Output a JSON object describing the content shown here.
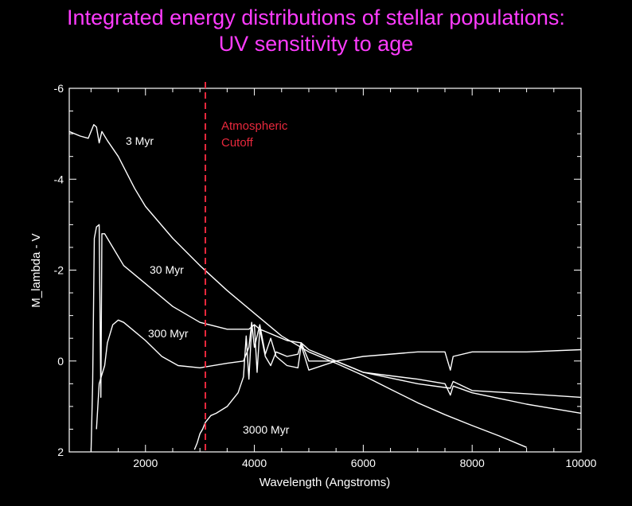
{
  "title": {
    "line1": "Integrated energy distributions of stellar populations:",
    "line2": "UV sensitivity to age"
  },
  "colors": {
    "background": "#000000",
    "title": "#ff3cff",
    "axes": "#ffffff",
    "curves": "#ffffff",
    "cutoff": "#e8283c"
  },
  "chart_data": {
    "type": "line",
    "xlabel": "Wavelength (Angstroms)",
    "ylabel": "M_lambda - V",
    "xlim": [
      600,
      10000
    ],
    "ylim": [
      2,
      -6
    ],
    "y_inverted": true,
    "xticks": [
      2000,
      4000,
      6000,
      8000,
      10000
    ],
    "yticks": [
      -6,
      -4,
      -2,
      0,
      2
    ],
    "grid": false,
    "cutoff": {
      "x": 3100,
      "label_line1": "Atmospheric",
      "label_line2": "Cutoff"
    },
    "series": [
      {
        "name": "3 Myr",
        "x": [
          600,
          800,
          950,
          1050,
          1100,
          1150,
          1200,
          1300,
          1500,
          1800,
          2000,
          2500,
          3000,
          3500,
          4000,
          4500,
          5000,
          5500,
          6000,
          6500,
          7000,
          7500,
          8000,
          8500,
          9000
        ],
        "y": [
          -5.05,
          -4.95,
          -4.9,
          -5.2,
          -5.15,
          -4.8,
          -5.05,
          -4.85,
          -4.5,
          -3.8,
          -3.4,
          -2.7,
          -2.1,
          -1.55,
          -1.05,
          -0.55,
          -0.2,
          0.05,
          0.32,
          0.62,
          0.92,
          1.18,
          1.42,
          1.65,
          1.9
        ]
      },
      {
        "name": "30 Myr",
        "x": [
          1000,
          1030,
          1060,
          1100,
          1150,
          1180,
          1200,
          1250,
          1300,
          1400,
          1600,
          2000,
          2500,
          3000,
          3500,
          3900,
          4000,
          4100,
          4200,
          4400,
          4600,
          4860,
          5000,
          5500,
          6000,
          7000,
          7600,
          7650,
          8000,
          9000,
          10000
        ],
        "y": [
          2.0,
          0.5,
          -2.7,
          -2.95,
          -3.0,
          0.8,
          -2.8,
          -2.8,
          -2.7,
          -2.5,
          -2.1,
          -1.7,
          -1.2,
          -0.85,
          -0.7,
          -0.7,
          -0.8,
          -0.7,
          -0.65,
          -0.55,
          -0.45,
          -0.4,
          -0.25,
          0.0,
          0.25,
          0.5,
          0.6,
          0.45,
          0.65,
          0.72,
          0.8
        ]
      },
      {
        "name": "300 Myr",
        "x": [
          1100,
          1150,
          1200,
          1250,
          1300,
          1400,
          1500,
          1600,
          1800,
          2000,
          2300,
          2600,
          3000,
          3500,
          3800,
          3900,
          3950,
          4000,
          4100,
          4200,
          4300,
          4400,
          4600,
          4800,
          4860,
          5000,
          5500,
          6000,
          7000,
          7500,
          7600,
          7650,
          8000,
          9000,
          10000
        ],
        "y": [
          1.5,
          0.5,
          0.3,
          0.1,
          -0.4,
          -0.8,
          -0.9,
          -0.85,
          -0.65,
          -0.45,
          -0.1,
          0.1,
          0.15,
          0.05,
          0.0,
          -0.3,
          -0.85,
          -0.3,
          -0.8,
          -0.15,
          -0.5,
          -0.1,
          0.1,
          0.15,
          -0.35,
          0.2,
          0.0,
          0.25,
          0.4,
          0.5,
          0.75,
          0.55,
          0.7,
          0.95,
          1.15
        ]
      },
      {
        "name": "3000 Myr",
        "x": [
          2900,
          2950,
          3000,
          3050,
          3100,
          3200,
          3300,
          3500,
          3700,
          3800,
          3850,
          3900,
          3950,
          4000,
          4050,
          4100,
          4200,
          4300,
          4400,
          4600,
          4800,
          4860,
          5000,
          5500,
          6000,
          7000,
          7500,
          7600,
          7650,
          8000,
          9000,
          10000
        ],
        "y": [
          1.95,
          1.8,
          1.6,
          1.5,
          1.35,
          1.2,
          1.15,
          1.0,
          0.7,
          0.35,
          -0.55,
          0.4,
          -0.75,
          -0.8,
          0.25,
          -0.7,
          -0.1,
          0.1,
          -0.2,
          -0.1,
          -0.15,
          -0.4,
          0.0,
          0.0,
          -0.1,
          -0.2,
          -0.2,
          0.2,
          -0.1,
          -0.2,
          -0.2,
          -0.25
        ]
      }
    ]
  }
}
